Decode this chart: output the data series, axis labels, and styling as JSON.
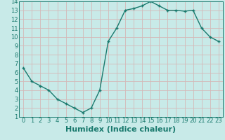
{
  "x": [
    0,
    1,
    2,
    3,
    4,
    5,
    6,
    7,
    8,
    9,
    10,
    11,
    12,
    13,
    14,
    15,
    16,
    17,
    18,
    19,
    20,
    21,
    22,
    23
  ],
  "y": [
    6.5,
    5.0,
    4.5,
    4.0,
    3.0,
    2.5,
    2.0,
    1.5,
    2.0,
    4.0,
    9.5,
    11.0,
    13.0,
    13.2,
    13.5,
    14.0,
    13.5,
    13.0,
    13.0,
    12.9,
    13.0,
    11.0,
    10.0,
    9.5
  ],
  "line_color": "#1a7a6e",
  "marker": "+",
  "marker_color": "#1a7a6e",
  "bg_color": "#c8eae8",
  "grid_color": "#d4b8b8",
  "xlabel": "Humidex (Indice chaleur)",
  "xlim": [
    -0.5,
    23.5
  ],
  "ylim": [
    1,
    14
  ],
  "xticks": [
    0,
    1,
    2,
    3,
    4,
    5,
    6,
    7,
    8,
    9,
    10,
    11,
    12,
    13,
    14,
    15,
    16,
    17,
    18,
    19,
    20,
    21,
    22,
    23
  ],
  "yticks": [
    1,
    2,
    3,
    4,
    5,
    6,
    7,
    8,
    9,
    10,
    11,
    12,
    13,
    14
  ],
  "tick_color": "#1a7a6e",
  "xlabel_color": "#1a7a6e",
  "xlabel_fontsize": 8,
  "tick_fontsize": 6,
  "linewidth": 1.0,
  "markersize": 3.5
}
